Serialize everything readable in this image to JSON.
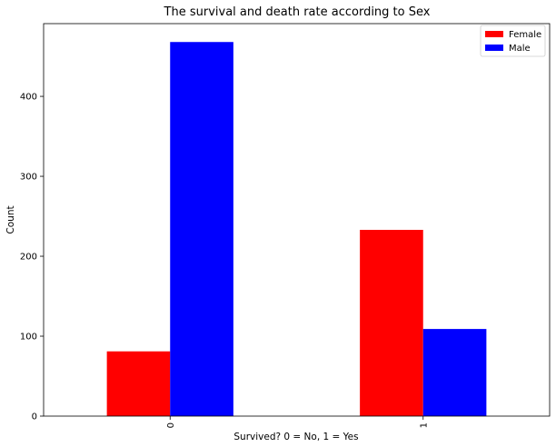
{
  "chart_data": {
    "type": "bar",
    "title": "The survival and death rate according to Sex",
    "xlabel": "Survived? 0 = No, 1 = Yes",
    "ylabel": "Count",
    "categories": [
      "0",
      "1"
    ],
    "series": [
      {
        "name": "Female",
        "color": "#ff0000",
        "values": [
          81,
          233
        ]
      },
      {
        "name": "Male",
        "color": "#0000ff",
        "values": [
          468,
          109
        ]
      }
    ],
    "ylim": [
      0,
      491
    ],
    "yticks": [
      0,
      100,
      200,
      300,
      400
    ],
    "grid": false,
    "legend_position": "top-right"
  }
}
